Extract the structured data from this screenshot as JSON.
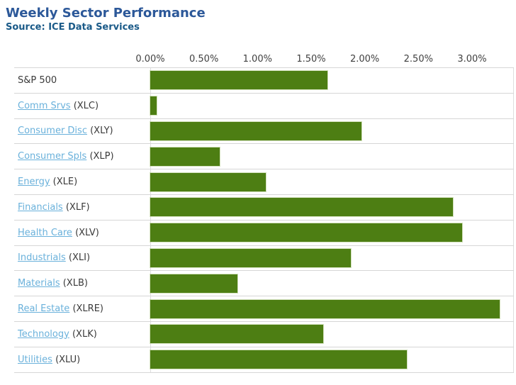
{
  "header": {
    "title": "Weekly Sector Performance",
    "source": "Source: ICE Data Services"
  },
  "colors": {
    "bar": "#4D7E13",
    "title": "#2C5899",
    "source": "#1A5A88",
    "link": "#6AB1DB",
    "grid": "#D6D6D6",
    "text": "#3A3A3A"
  },
  "chart_data": {
    "type": "bar",
    "orientation": "horizontal",
    "title": "Weekly Sector Performance",
    "subtitle": "Source: ICE Data Services",
    "unit": "%",
    "xlabel": "",
    "ylabel": "",
    "xlim": [
      0,
      3.39
    ],
    "x_ticks": {
      "labels": [
        "0.00%",
        "0.50%",
        "1.00%",
        "1.50%",
        "2.00%",
        "2.50%",
        "3.00%"
      ],
      "values": [
        0,
        0.5,
        1.0,
        1.5,
        2.0,
        2.5,
        3.0
      ]
    },
    "grid": "horizontal-row-separators",
    "legend": "none",
    "bar_color": "#4D7E13",
    "categories": [
      "S&P 500",
      "Comm Srvs (XLC)",
      "Consumer Disc (XLY)",
      "Consumer Spls (XLP)",
      "Energy (XLE)",
      "Financials (XLF)",
      "Health Care (XLV)",
      "Industrials (XLI)",
      "Materials (XLB)",
      "Real Estate (XLRE)",
      "Technology (XLK)",
      "Utilities (XLU)"
    ],
    "values": [
      1.65,
      0.06,
      1.97,
      0.65,
      1.08,
      2.82,
      2.91,
      1.87,
      0.81,
      3.26,
      1.61,
      2.39
    ],
    "rows": [
      {
        "label": "S&P 500",
        "ticker": "",
        "is_link": false,
        "value": 1.65
      },
      {
        "label": "Comm Srvs",
        "ticker": "(XLC)",
        "is_link": true,
        "value": 0.06
      },
      {
        "label": "Consumer Disc",
        "ticker": "(XLY)",
        "is_link": true,
        "value": 1.97
      },
      {
        "label": "Consumer Spls",
        "ticker": "(XLP)",
        "is_link": true,
        "value": 0.65
      },
      {
        "label": "Energy",
        "ticker": "(XLE)",
        "is_link": true,
        "value": 1.08
      },
      {
        "label": "Financials",
        "ticker": "(XLF)",
        "is_link": true,
        "value": 2.82
      },
      {
        "label": "Health Care",
        "ticker": "(XLV)",
        "is_link": true,
        "value": 2.91
      },
      {
        "label": "Industrials",
        "ticker": "(XLI)",
        "is_link": true,
        "value": 1.87
      },
      {
        "label": "Materials",
        "ticker": "(XLB)",
        "is_link": true,
        "value": 0.81
      },
      {
        "label": "Real Estate",
        "ticker": "(XLRE)",
        "is_link": true,
        "value": 3.26
      },
      {
        "label": "Technology",
        "ticker": "(XLK)",
        "is_link": true,
        "value": 1.61
      },
      {
        "label": "Utilities",
        "ticker": "(XLU)",
        "is_link": true,
        "value": 2.39
      }
    ]
  }
}
